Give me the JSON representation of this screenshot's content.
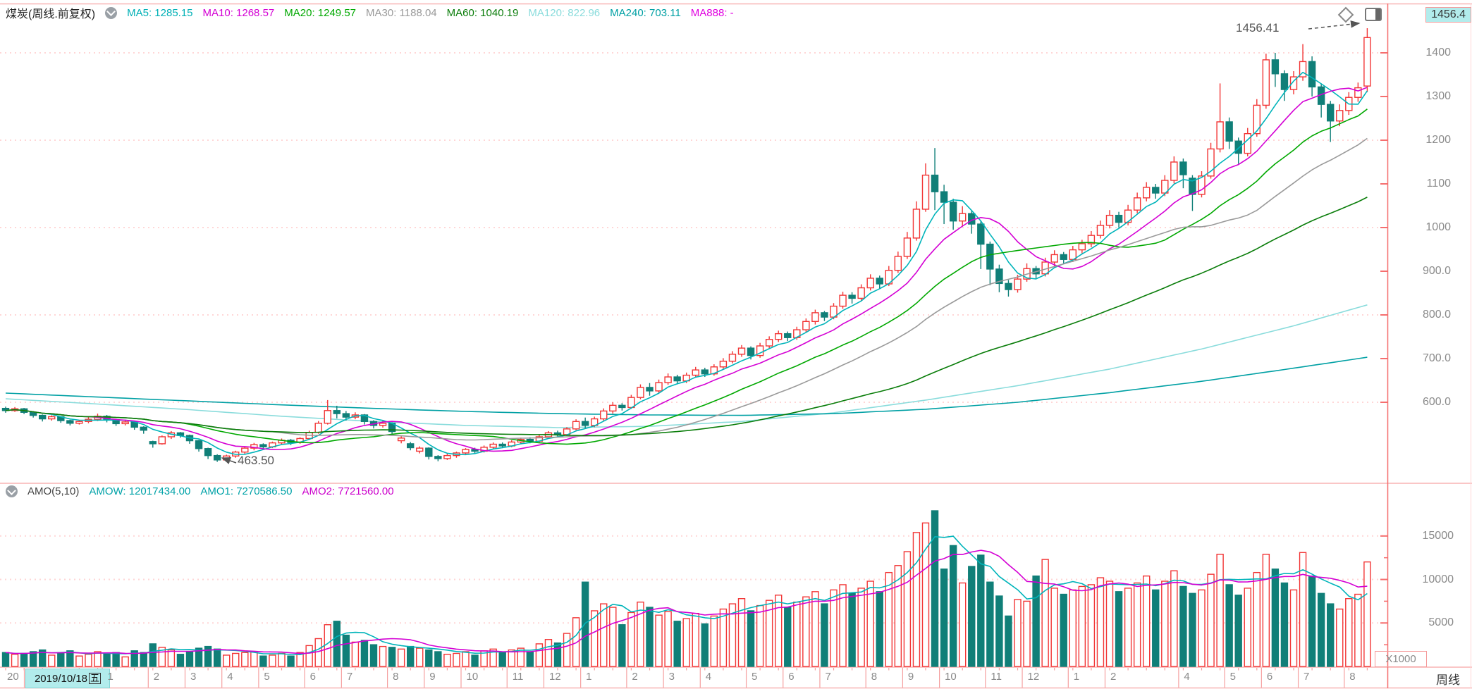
{
  "header": {
    "title": "煤炭(周线.前复权)",
    "ma_legend": [
      {
        "label": "MA5:",
        "value": "1285.15",
        "color": "#00b0b6"
      },
      {
        "label": "MA10:",
        "value": "1268.57",
        "color": "#d400d4"
      },
      {
        "label": "MA20:",
        "value": "1249.57",
        "color": "#00a800"
      },
      {
        "label": "MA30:",
        "value": "1188.04",
        "color": "#9a9a9a"
      },
      {
        "label": "MA60:",
        "value": "1040.19",
        "color": "#0a7d0a"
      },
      {
        "label": "MA120:",
        "value": "822.96",
        "color": "#8adcdc"
      },
      {
        "label": "MA240:",
        "value": "703.11",
        "color": "#00a0a4"
      },
      {
        "label": "MA888:",
        "value": "-",
        "color": "#e100e1"
      }
    ]
  },
  "amo_header": {
    "name": "AMO(5,10)",
    "items": [
      {
        "label": "AMOW:",
        "value": "12017434.00",
        "color": "#00a2a8"
      },
      {
        "label": "AMO1:",
        "value": "7270586.50",
        "color": "#00a2a8"
      },
      {
        "label": "AMO2:",
        "value": "7721560.00",
        "color": "#cc00cc"
      }
    ]
  },
  "price_box": {
    "value": "1456.4"
  },
  "annotations": {
    "high": "1456.41",
    "low": "463.50"
  },
  "x_axis": {
    "first_label": "20",
    "selected_date": "2019/10/18",
    "selected_weekday": "五",
    "months": [
      {
        "label": "1",
        "week": 11
      },
      {
        "label": "2",
        "week": 16
      },
      {
        "label": "3",
        "week": 20
      },
      {
        "label": "4",
        "week": 24
      },
      {
        "label": "5",
        "week": 28
      },
      {
        "label": "6",
        "week": 33
      },
      {
        "label": "7",
        "week": 37
      },
      {
        "label": "8",
        "week": 42
      },
      {
        "label": "9",
        "week": 46
      },
      {
        "label": "10",
        "week": 50
      },
      {
        "label": "11",
        "week": 55
      },
      {
        "label": "12",
        "week": 59
      },
      {
        "label": "1",
        "week": 63
      },
      {
        "label": "2",
        "week": 68
      },
      {
        "label": "3",
        "week": 72
      },
      {
        "label": "4",
        "week": 76
      },
      {
        "label": "5",
        "week": 81
      },
      {
        "label": "6",
        "week": 85
      },
      {
        "label": "7",
        "week": 89
      },
      {
        "label": "8",
        "week": 94
      },
      {
        "label": "9",
        "week": 98
      },
      {
        "label": "10",
        "week": 102
      },
      {
        "label": "11",
        "week": 107
      },
      {
        "label": "12",
        "week": 111
      },
      {
        "label": "1",
        "week": 116
      },
      {
        "label": "2",
        "week": 120
      },
      {
        "label": "4",
        "week": 128
      },
      {
        "label": "5",
        "week": 133
      },
      {
        "label": "6",
        "week": 137
      },
      {
        "label": "7",
        "week": 141
      },
      {
        "label": "8",
        "week": 146
      }
    ]
  },
  "y_axis": {
    "price_labels": [
      {
        "text": "1400",
        "value": 1400,
        "dotted": true
      },
      {
        "text": "1300",
        "value": 1300,
        "dotted": false
      },
      {
        "text": "1200",
        "value": 1200,
        "dotted": true
      },
      {
        "text": "1100",
        "value": 1100,
        "dotted": false
      },
      {
        "text": "1000",
        "value": 1000,
        "dotted": true
      },
      {
        "text": "900.0",
        "value": 900,
        "dotted": false
      },
      {
        "text": "800.0",
        "value": 800,
        "dotted": true
      },
      {
        "text": "700.0",
        "value": 700,
        "dotted": false
      },
      {
        "text": "600.0",
        "value": 600,
        "dotted": true
      }
    ],
    "amo_labels": [
      {
        "text": "15000",
        "value": 15000
      },
      {
        "text": "10000",
        "value": 10000
      },
      {
        "text": "5000",
        "value": 5000
      }
    ],
    "amo_minor_ticks": [
      12500,
      7500,
      2500
    ],
    "amo_unit": "X1000"
  },
  "period_label": "周线",
  "icons": {
    "collapse": "chevron-circle-down",
    "diamond": "diamond-outline",
    "layout": "panel-toggle"
  },
  "colors": {
    "up": "#f23535",
    "down": "#107f78",
    "ma5": "#00b4ba",
    "ma10": "#d400d4",
    "ma20": "#00a800",
    "ma30": "#9a9a9a",
    "ma60": "#0a7d0a",
    "ma120": "#8adcdc",
    "ma240": "#00a0a4",
    "amo1": "#00b4ba",
    "amo2": "#d400d4",
    "grid": "#ffd6d6",
    "axis": "#f56e6e",
    "frame": "#f8b4b4",
    "label": "#8a8a8a",
    "highlight_bg": "#b2ecec"
  },
  "chart_data": {
    "type": "candlestick+volume",
    "timeframe": "weekly, 2019/10/18 - 2022/08, Chinese coal sector index (煤炭)",
    "price_axis_range_visible": [
      419,
      1477
    ],
    "amo_axis_range_visible": [
      0,
      21000
    ],
    "amo_unit_multiplier": 1000,
    "candles_format": [
      "open",
      "close",
      "low",
      "high"
    ],
    "candles": [
      [
        586,
        581,
        576,
        590
      ],
      [
        581,
        585,
        578,
        589
      ],
      [
        585,
        577,
        573,
        587
      ],
      [
        577,
        570,
        565,
        579
      ],
      [
        570,
        562,
        556,
        572
      ],
      [
        562,
        567,
        558,
        570
      ],
      [
        567,
        558,
        553,
        568
      ],
      [
        558,
        552,
        547,
        560
      ],
      [
        552,
        556,
        549,
        559
      ],
      [
        556,
        561,
        552,
        566
      ],
      [
        561,
        568,
        557,
        574
      ],
      [
        568,
        560,
        554,
        571
      ],
      [
        560,
        551,
        546,
        562
      ],
      [
        551,
        555,
        547,
        558
      ],
      [
        555,
        543,
        537,
        556
      ],
      [
        543,
        536,
        528,
        545
      ],
      [
        510,
        505,
        496,
        512
      ],
      [
        505,
        521,
        503,
        524
      ],
      [
        521,
        530,
        516,
        534
      ],
      [
        530,
        524,
        519,
        532
      ],
      [
        524,
        512,
        505,
        526
      ],
      [
        512,
        494,
        487,
        514
      ],
      [
        494,
        478,
        470,
        496
      ],
      [
        478,
        468,
        463.5,
        481
      ],
      [
        468,
        477,
        465,
        480
      ],
      [
        477,
        486,
        473,
        489
      ],
      [
        486,
        495,
        482,
        498
      ],
      [
        495,
        503,
        490,
        507
      ],
      [
        503,
        498,
        493,
        506
      ],
      [
        498,
        507,
        495,
        510
      ],
      [
        507,
        513,
        503,
        517
      ],
      [
        513,
        508,
        502,
        516
      ],
      [
        508,
        517,
        505,
        520
      ],
      [
        517,
        531,
        514,
        535
      ],
      [
        531,
        552,
        528,
        557
      ],
      [
        552,
        581,
        549,
        605
      ],
      [
        581,
        574,
        563,
        592
      ],
      [
        574,
        566,
        558,
        580
      ],
      [
        566,
        571,
        561,
        577
      ],
      [
        571,
        556,
        549,
        573
      ],
      [
        556,
        547,
        540,
        559
      ],
      [
        547,
        552,
        542,
        558
      ],
      [
        552,
        533,
        526,
        554
      ],
      [
        512,
        518,
        506,
        522
      ],
      [
        505,
        496,
        490,
        509
      ],
      [
        488,
        495,
        483,
        499
      ],
      [
        495,
        476,
        469,
        497
      ],
      [
        476,
        471,
        465,
        479
      ],
      [
        471,
        478,
        468,
        482
      ],
      [
        478,
        484,
        473,
        487
      ],
      [
        484,
        492,
        480,
        495
      ],
      [
        492,
        488,
        483,
        496
      ],
      [
        488,
        497,
        485,
        501
      ],
      [
        497,
        504,
        493,
        508
      ],
      [
        504,
        500,
        495,
        508
      ],
      [
        500,
        509,
        497,
        513
      ],
      [
        509,
        515,
        505,
        519
      ],
      [
        515,
        511,
        506,
        520
      ],
      [
        511,
        521,
        508,
        525
      ],
      [
        521,
        530,
        517,
        534
      ],
      [
        530,
        526,
        520,
        535
      ],
      [
        526,
        539,
        523,
        543
      ],
      [
        539,
        556,
        536,
        561
      ],
      [
        556,
        547,
        539,
        565
      ],
      [
        547,
        562,
        543,
        567
      ],
      [
        562,
        580,
        558,
        586
      ],
      [
        580,
        593,
        574,
        600
      ],
      [
        593,
        588,
        581,
        598
      ],
      [
        588,
        611,
        585,
        617
      ],
      [
        611,
        634,
        607,
        641
      ],
      [
        634,
        626,
        615,
        644
      ],
      [
        626,
        645,
        621,
        652
      ],
      [
        645,
        658,
        640,
        666
      ],
      [
        658,
        649,
        641,
        663
      ],
      [
        649,
        662,
        644,
        668
      ],
      [
        662,
        674,
        657,
        681
      ],
      [
        674,
        665,
        658,
        679
      ],
      [
        665,
        681,
        661,
        687
      ],
      [
        681,
        694,
        676,
        701
      ],
      [
        694,
        710,
        689,
        717
      ],
      [
        710,
        724,
        704,
        731
      ],
      [
        724,
        707,
        698,
        728
      ],
      [
        707,
        729,
        702,
        736
      ],
      [
        729,
        744,
        723,
        751
      ],
      [
        744,
        757,
        738,
        764
      ],
      [
        757,
        748,
        740,
        762
      ],
      [
        748,
        766,
        743,
        773
      ],
      [
        766,
        785,
        760,
        792
      ],
      [
        785,
        805,
        778,
        812
      ],
      [
        805,
        795,
        786,
        809
      ],
      [
        795,
        820,
        790,
        827
      ],
      [
        820,
        845,
        814,
        853
      ],
      [
        845,
        838,
        826,
        852
      ],
      [
        838,
        862,
        832,
        870
      ],
      [
        862,
        884,
        856,
        893
      ],
      [
        884,
        871,
        860,
        890
      ],
      [
        871,
        902,
        866,
        912
      ],
      [
        902,
        934,
        896,
        945
      ],
      [
        934,
        976,
        928,
        990
      ],
      [
        976,
        1042,
        970,
        1060
      ],
      [
        1042,
        1120,
        1036,
        1147
      ],
      [
        1120,
        1082,
        1040,
        1182
      ],
      [
        1082,
        1058,
        1008,
        1098
      ],
      [
        1058,
        1015,
        995,
        1066
      ],
      [
        1015,
        1032,
        1002,
        1049
      ],
      [
        1032,
        1008,
        986,
        1040
      ],
      [
        1008,
        962,
        905,
        1016
      ],
      [
        962,
        905,
        868,
        968
      ],
      [
        905,
        872,
        852,
        915
      ],
      [
        872,
        858,
        842,
        880
      ],
      [
        858,
        882,
        851,
        892
      ],
      [
        882,
        906,
        876,
        918
      ],
      [
        906,
        894,
        884,
        912
      ],
      [
        894,
        921,
        888,
        931
      ],
      [
        921,
        938,
        912,
        948
      ],
      [
        938,
        927,
        917,
        944
      ],
      [
        927,
        949,
        921,
        958
      ],
      [
        949,
        963,
        941,
        972
      ],
      [
        963,
        982,
        955,
        992
      ],
      [
        982,
        1005,
        975,
        1016
      ],
      [
        1005,
        1028,
        998,
        1040
      ],
      [
        1028,
        1012,
        1000,
        1036
      ],
      [
        1012,
        1040,
        1005,
        1052
      ],
      [
        1040,
        1068,
        1033,
        1080
      ],
      [
        1068,
        1092,
        1060,
        1104
      ],
      [
        1092,
        1079,
        1066,
        1100
      ],
      [
        1079,
        1108,
        1072,
        1120
      ],
      [
        1108,
        1150,
        1101,
        1163
      ],
      [
        1150,
        1121,
        1090,
        1158
      ],
      [
        1113,
        1076,
        1038,
        1120
      ],
      [
        1076,
        1118,
        1069,
        1129
      ],
      [
        1118,
        1180,
        1112,
        1194
      ],
      [
        1180,
        1242,
        1172,
        1330
      ],
      [
        1242,
        1198,
        1180,
        1252
      ],
      [
        1198,
        1170,
        1146,
        1206
      ],
      [
        1170,
        1215,
        1163,
        1228
      ],
      [
        1215,
        1280,
        1208,
        1294
      ],
      [
        1280,
        1384,
        1272,
        1398
      ],
      [
        1384,
        1352,
        1322,
        1400
      ],
      [
        1352,
        1316,
        1290,
        1360
      ],
      [
        1316,
        1345,
        1305,
        1358
      ],
      [
        1345,
        1380,
        1336,
        1420
      ],
      [
        1380,
        1322,
        1300,
        1392
      ],
      [
        1322,
        1282,
        1252,
        1330
      ],
      [
        1282,
        1244,
        1196,
        1290
      ],
      [
        1244,
        1268,
        1232,
        1282
      ],
      [
        1268,
        1298,
        1258,
        1310
      ],
      [
        1298,
        1320,
        1288,
        1332
      ],
      [
        1324,
        1435,
        1310,
        1456.41
      ]
    ],
    "amo_x1000": [
      1600,
      1400,
      1500,
      1700,
      1900,
      1300,
      1600,
      1800,
      1200,
      1400,
      1700,
      1500,
      1600,
      1100,
      1800,
      1600,
      2600,
      2200,
      1900,
      1400,
      1700,
      2100,
      2300,
      2000,
      1300,
      1500,
      1600,
      1700,
      1200,
      1300,
      1500,
      1200,
      1600,
      2400,
      3200,
      4800,
      5200,
      3600,
      2800,
      3000,
      2500,
      2300,
      2200,
      2000,
      2300,
      2100,
      1900,
      1700,
      1400,
      1500,
      1700,
      1300,
      1800,
      2000,
      1600,
      1900,
      2100,
      1700,
      2600,
      3100,
      2700,
      3800,
      5600,
      9700,
      6400,
      7200,
      6800,
      4800,
      6200,
      7400,
      6800,
      5900,
      6300,
      5200,
      5500,
      6100,
      4900,
      5800,
      6600,
      7200,
      7800,
      6400,
      7000,
      7600,
      8200,
      6800,
      7400,
      8000,
      8600,
      7200,
      8800,
      9400,
      8400,
      9000,
      9800,
      8600,
      10800,
      11600,
      13200,
      15400,
      16500,
      17900,
      11200,
      13900,
      9600,
      11500,
      12800,
      9700,
      8100,
      5800,
      7700,
      7500,
      10400,
      12300,
      9000,
      8300,
      8800,
      9200,
      9400,
      10200,
      9800,
      8600,
      9000,
      9600,
      10400,
      8800,
      9800,
      11000,
      9200,
      8400,
      8800,
      10600,
      12900,
      9400,
      8200,
      9000,
      10800,
      12900,
      11200,
      9600,
      8800,
      13100,
      10400,
      8400,
      7200,
      6600,
      7800,
      8300,
      12017
    ],
    "ma_overlays_visible": [
      "MA5",
      "MA10",
      "MA20",
      "MA30",
      "MA60",
      "MA120",
      "MA240"
    ],
    "ma_last_values": {
      "MA5": 1285.15,
      "MA10": 1268.57,
      "MA20": 1249.57,
      "MA30": 1188.04,
      "MA60": 1040.19,
      "MA120": 822.96,
      "MA240": 703.11,
      "MA888": null
    },
    "ma120_points": [
      [
        0,
        608
      ],
      [
        10,
        596
      ],
      [
        20,
        583
      ],
      [
        30,
        568
      ],
      [
        40,
        556
      ],
      [
        50,
        547
      ],
      [
        60,
        542
      ],
      [
        70,
        545
      ],
      [
        80,
        556
      ],
      [
        90,
        576
      ],
      [
        100,
        605
      ],
      [
        110,
        638
      ],
      [
        120,
        676
      ],
      [
        130,
        722
      ],
      [
        140,
        775
      ],
      [
        148,
        822.96
      ]
    ],
    "ma240_points": [
      [
        0,
        621
      ],
      [
        10,
        612
      ],
      [
        20,
        603
      ],
      [
        30,
        594
      ],
      [
        40,
        586
      ],
      [
        50,
        579
      ],
      [
        60,
        574
      ],
      [
        70,
        571
      ],
      [
        80,
        570
      ],
      [
        90,
        574
      ],
      [
        100,
        584
      ],
      [
        110,
        600
      ],
      [
        120,
        622
      ],
      [
        130,
        648
      ],
      [
        140,
        678
      ],
      [
        148,
        703.11
      ]
    ],
    "annotated_high": 1456.41,
    "annotated_low": 463.5,
    "grid": "dotted pink horizontal lines at 1400/1200/1000/800/600 and 15000/10000/5000",
    "legend_position": "top-left inside each panel"
  }
}
